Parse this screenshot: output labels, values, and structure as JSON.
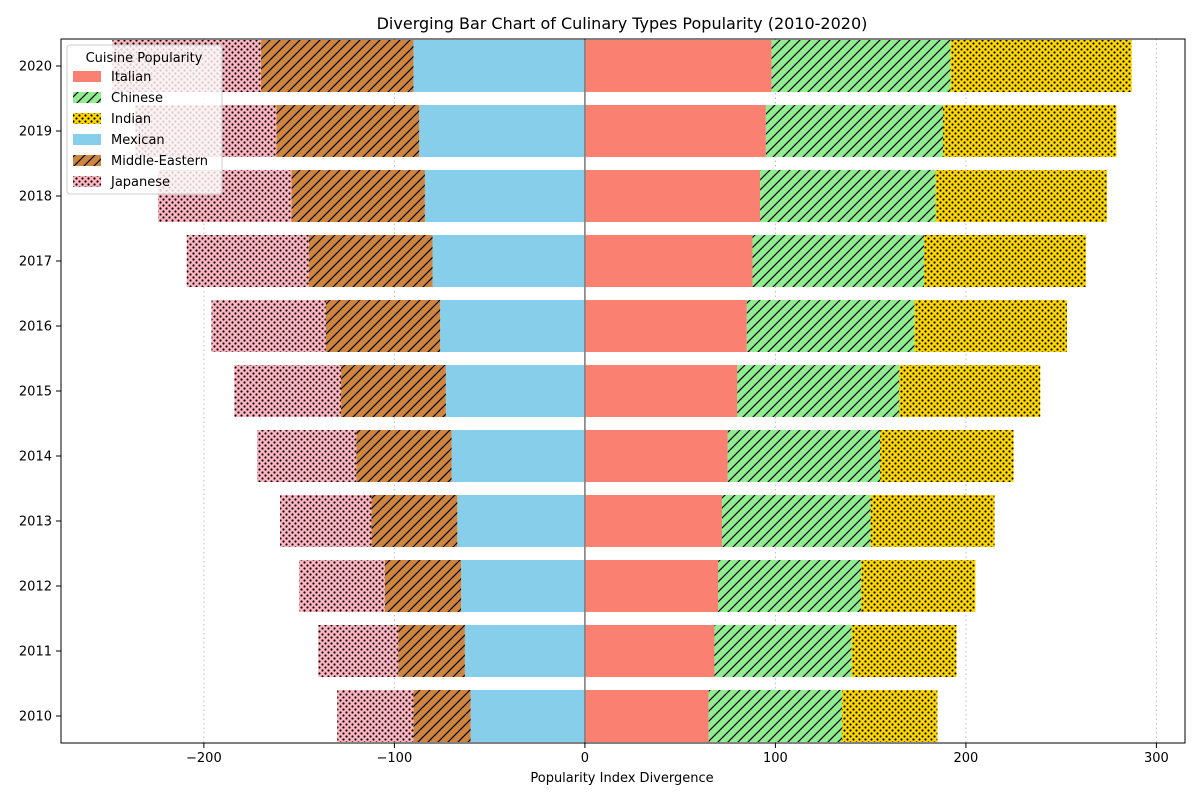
{
  "chart_data": {
    "type": "bar",
    "orientation": "horizontal-diverging",
    "title": "Diverging Bar Chart of Culinary Types Popularity (2010-2020)",
    "xlabel": "Popularity Index Divergence",
    "ylabel": "",
    "xlim": [
      -275,
      315
    ],
    "xticks": [
      -200,
      -100,
      0,
      100,
      200,
      300
    ],
    "xtick_labels": [
      "−200",
      "−100",
      "0",
      "100",
      "200",
      "300"
    ],
    "grid": "vertical-dotted",
    "categories": [
      "2010",
      "2011",
      "2012",
      "2013",
      "2014",
      "2015",
      "2016",
      "2017",
      "2018",
      "2019",
      "2020"
    ],
    "legend": {
      "title": "Cuisine Popularity",
      "placement": "top-left"
    },
    "series": [
      {
        "name": "Italian",
        "side": "positive",
        "color": "#fa8072",
        "hatch": "none",
        "values": [
          65,
          68,
          70,
          72,
          75,
          80,
          85,
          88,
          92,
          95,
          98
        ]
      },
      {
        "name": "Chinese",
        "side": "positive",
        "color": "#90ee90",
        "hatch": "diagonal",
        "values": [
          70,
          72,
          75,
          78,
          80,
          85,
          88,
          90,
          92,
          93,
          94
        ]
      },
      {
        "name": "Indian",
        "side": "positive",
        "color": "#ffd700",
        "hatch": "dots",
        "values": [
          50,
          55,
          60,
          65,
          70,
          74,
          80,
          85,
          90,
          91,
          95
        ]
      },
      {
        "name": "Mexican",
        "side": "negative",
        "color": "#87ceeb",
        "hatch": "none",
        "values": [
          60,
          63,
          65,
          67,
          70,
          73,
          76,
          80,
          84,
          87,
          90
        ]
      },
      {
        "name": "Middle-Eastern",
        "side": "negative",
        "color": "#cd853f",
        "hatch": "diagonal",
        "values": [
          30,
          35,
          40,
          45,
          50,
          55,
          60,
          65,
          70,
          75,
          80
        ]
      },
      {
        "name": "Japanese",
        "side": "negative",
        "color": "#ffb6c1",
        "hatch": "dots",
        "values": [
          40,
          42,
          45,
          48,
          52,
          56,
          60,
          64,
          70,
          74,
          78
        ]
      }
    ]
  }
}
